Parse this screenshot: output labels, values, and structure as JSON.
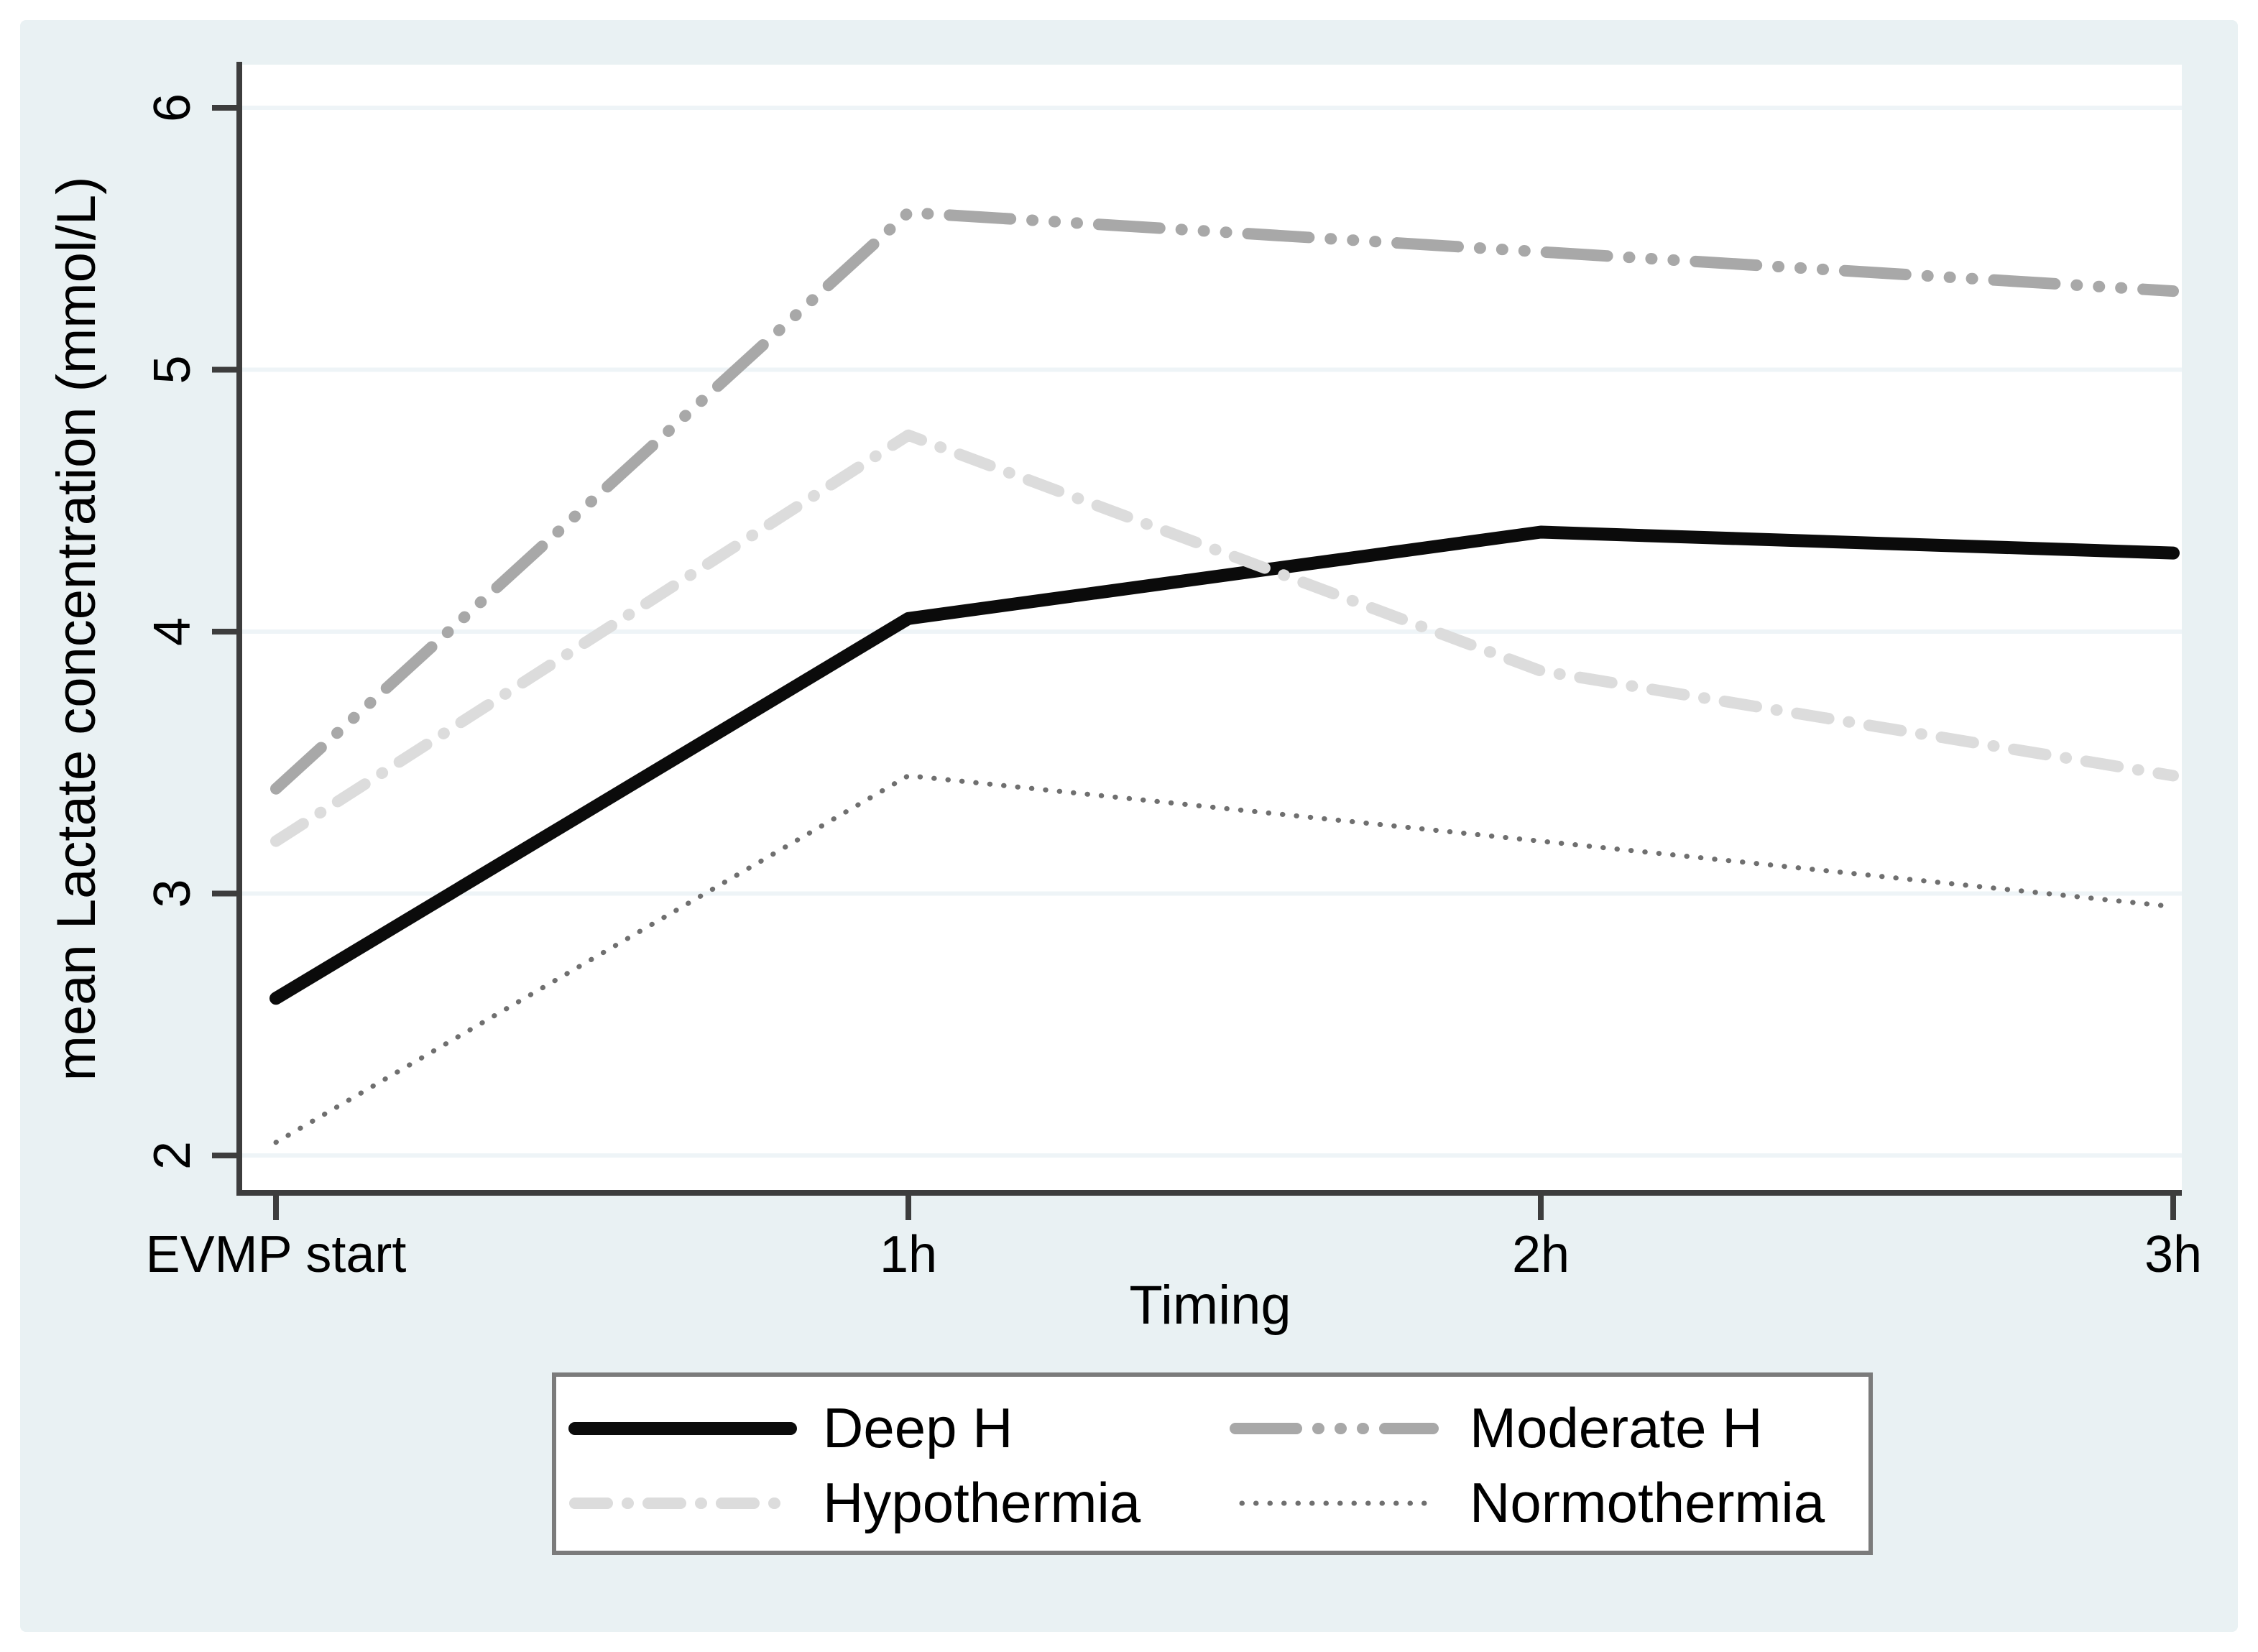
{
  "chart_data": {
    "type": "line",
    "title": "",
    "xlabel": "Timing",
    "ylabel": "mean Lactate concentration (mmol/L)",
    "categories": [
      "EVMP start",
      "1h",
      "2h",
      "3h"
    ],
    "yticks": [
      2,
      3,
      4,
      5,
      6
    ],
    "ylim": [
      1.85,
      6.17
    ],
    "grid": "horizontal",
    "legend_position": "bottom",
    "legend_columns": 2,
    "series": [
      {
        "name": "Deep H",
        "values": [
          2.6,
          4.05,
          4.38,
          4.3
        ],
        "color": "#0b0b0b",
        "style": "solid",
        "width": 18
      },
      {
        "name": "Moderate H",
        "values": [
          3.4,
          5.6,
          5.45,
          5.3
        ],
        "color": "#a8a8a8",
        "style": "longdash-dot-dot-dot",
        "width": 16
      },
      {
        "name": "Hypothermia",
        "values": [
          3.2,
          4.75,
          3.85,
          3.45
        ],
        "color": "#dcdcdc",
        "style": "dash-dot",
        "width": 16
      },
      {
        "name": "Normothermia",
        "values": [
          2.05,
          3.45,
          3.2,
          2.95
        ],
        "color": "#6f6f6f",
        "style": "dotted",
        "width": 7
      }
    ]
  },
  "colors": {
    "page_bg": "#ffffff",
    "panel_bg": "#e9f1f3",
    "plot_bg": "#ffffff",
    "grid": "#eef4f7",
    "axis": "#3d3d3d",
    "text": "#000000",
    "legend_bg": "#ffffff",
    "legend_border": "#7b7b7b"
  }
}
